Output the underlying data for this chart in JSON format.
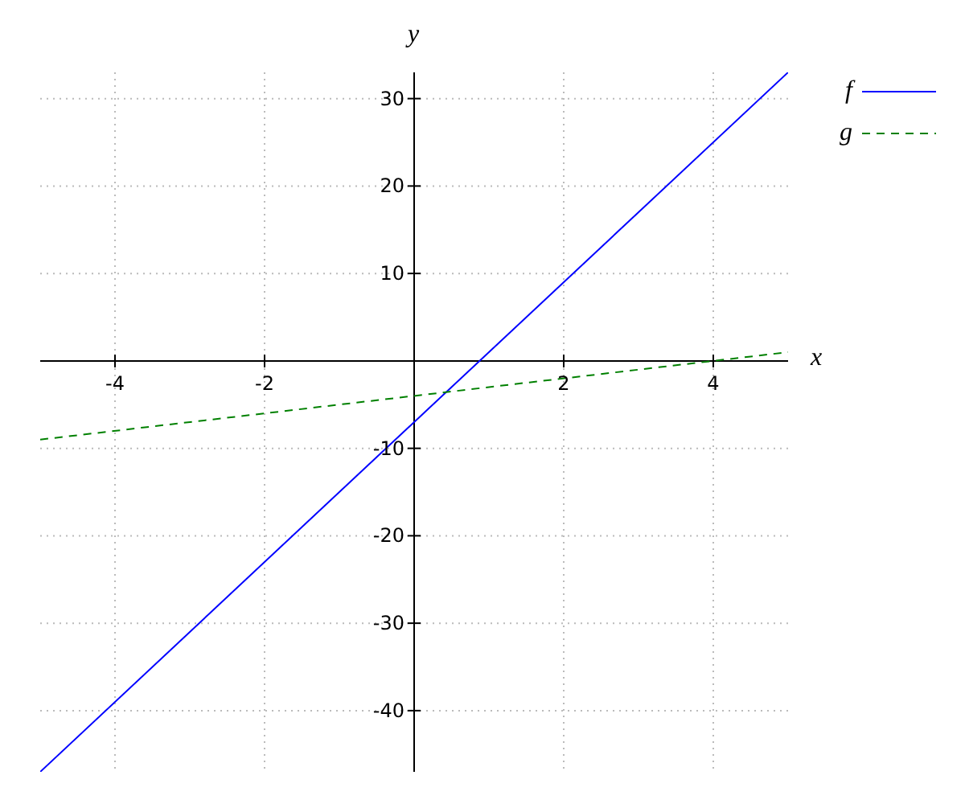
{
  "chart_data": {
    "type": "line",
    "xlabel": "x",
    "ylabel": "y",
    "x": [
      -5,
      5
    ],
    "series": [
      {
        "name": "f",
        "color": "#0000ff",
        "values": [
          -47,
          33
        ],
        "line_style": "solid"
      },
      {
        "name": "g",
        "color": "#008000",
        "values": [
          -9,
          1
        ],
        "line_style": "dashed"
      }
    ],
    "xlim": [
      -5,
      5
    ],
    "ylim": [
      -47,
      33
    ],
    "xticks": [
      -4,
      -2,
      2,
      4
    ],
    "yticks": [
      -40,
      -30,
      -20,
      -10,
      10,
      20,
      30
    ],
    "grid": true,
    "legend": "top right",
    "marker": "none"
  }
}
